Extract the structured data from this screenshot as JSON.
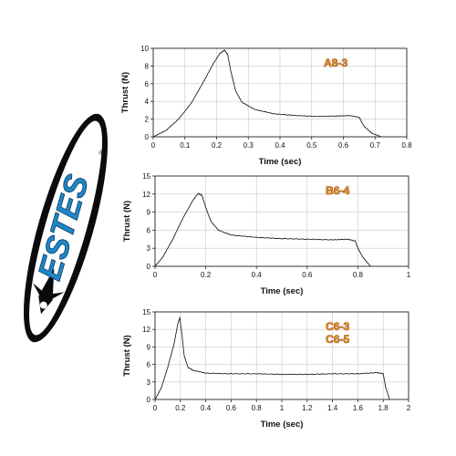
{
  "logo": {
    "brand": "ESTES",
    "registered_mark": "®",
    "colors": {
      "border": "#0b0b0b",
      "face": "#ffffff",
      "lettering": "#1f86c6"
    },
    "icon": "rocket-nose-icon"
  },
  "colors": {
    "curve": "#222222",
    "grid": "#c9c9c9",
    "label_fill": "#f08a1a",
    "label_outline": "#3a1a00"
  },
  "chart_data": [
    {
      "type": "line",
      "labels": [
        "A8-3"
      ],
      "xlabel": "Time (sec)",
      "ylabel": "Thrust (N)",
      "xlim": [
        0,
        0.8
      ],
      "ylim": [
        0,
        10
      ],
      "xticks": [
        "0",
        "0.1",
        "0.2",
        "0.3",
        "0.4",
        "0.5",
        "0.6",
        "0.7",
        "0.8"
      ],
      "yticks": [
        "0",
        "2",
        "4",
        "6",
        "8",
        "10"
      ],
      "grid": true,
      "label_position": "top-right",
      "series": [
        {
          "x": [
            0,
            0.04,
            0.08,
            0.12,
            0.16,
            0.19,
            0.21,
            0.225,
            0.235,
            0.245,
            0.26,
            0.28,
            0.32,
            0.38,
            0.45,
            0.52,
            0.58,
            0.62,
            0.65,
            0.665,
            0.69,
            0.72
          ],
          "y": [
            0,
            0.7,
            2.0,
            3.8,
            6.3,
            8.3,
            9.4,
            9.8,
            9.3,
            7.4,
            5.2,
            3.9,
            3.1,
            2.6,
            2.4,
            2.3,
            2.35,
            2.4,
            2.2,
            1.2,
            0.4,
            0
          ]
        }
      ]
    },
    {
      "type": "line",
      "labels": [
        "B6-4"
      ],
      "xlabel": "Time (sec)",
      "ylabel": "Thrust (N)",
      "xlim": [
        0,
        1
      ],
      "ylim": [
        0,
        15
      ],
      "xticks": [
        "0",
        "0.2",
        "0.4",
        "0.6",
        "0.8",
        "1"
      ],
      "yticks": [
        "0",
        "3",
        "6",
        "9",
        "12",
        "15"
      ],
      "grid": true,
      "label_position": "top-right",
      "series": [
        {
          "x": [
            0,
            0.03,
            0.07,
            0.11,
            0.15,
            0.17,
            0.185,
            0.2,
            0.22,
            0.25,
            0.3,
            0.4,
            0.5,
            0.6,
            0.7,
            0.76,
            0.79,
            0.8,
            0.82,
            0.85
          ],
          "y": [
            0,
            1.5,
            4.5,
            8.0,
            11.0,
            12.1,
            11.8,
            9.8,
            7.5,
            6.0,
            5.2,
            4.8,
            4.6,
            4.5,
            4.4,
            4.5,
            4.2,
            3.0,
            1.5,
            0
          ]
        }
      ]
    },
    {
      "type": "line",
      "labels": [
        "C6-3",
        "C6-5"
      ],
      "xlabel": "Time (sec)",
      "ylabel": "Thrust (N)",
      "xlim": [
        0,
        2
      ],
      "ylim": [
        0,
        15
      ],
      "xticks": [
        "0",
        "0.2",
        "0.4",
        "0.6",
        "0.8",
        "1",
        "1.2",
        "1.4",
        "1.6",
        "1.8",
        "2"
      ],
      "yticks": [
        "0",
        "3",
        "6",
        "9",
        "12",
        "15"
      ],
      "grid": true,
      "label_position": "top-right",
      "series": [
        {
          "x": [
            0,
            0.05,
            0.1,
            0.15,
            0.18,
            0.195,
            0.21,
            0.23,
            0.26,
            0.3,
            0.4,
            0.6,
            0.8,
            1.0,
            1.2,
            1.4,
            1.6,
            1.75,
            1.8,
            1.82,
            1.85
          ],
          "y": [
            0,
            2.0,
            5.5,
            9.5,
            13.0,
            14.0,
            11.5,
            7.5,
            5.5,
            5.0,
            4.5,
            4.4,
            4.4,
            4.3,
            4.3,
            4.4,
            4.4,
            4.6,
            4.4,
            2.0,
            0
          ]
        }
      ]
    }
  ]
}
